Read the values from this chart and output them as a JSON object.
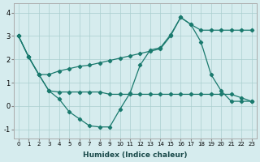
{
  "xlabel": "Humidex (Indice chaleur)",
  "xlim": [
    -0.5,
    23.5
  ],
  "ylim": [
    -1.4,
    4.4
  ],
  "xticks": [
    0,
    1,
    2,
    3,
    4,
    5,
    6,
    7,
    8,
    9,
    10,
    11,
    12,
    13,
    14,
    15,
    16,
    17,
    18,
    19,
    20,
    21,
    22,
    23
  ],
  "yticks": [
    -1,
    0,
    1,
    2,
    3,
    4
  ],
  "bg_color": "#d6ecee",
  "line_color": "#1a7a6e",
  "grid_color": "#aacfcf",
  "line1_x": [
    0,
    1,
    2,
    3,
    4,
    5,
    6,
    7,
    8,
    9,
    10,
    11,
    12,
    13,
    14,
    15,
    16,
    17,
    18,
    19,
    20,
    21,
    22,
    23
  ],
  "line1_y": [
    3.0,
    2.1,
    1.35,
    1.35,
    1.5,
    1.6,
    1.7,
    1.75,
    1.85,
    1.95,
    2.05,
    2.15,
    2.25,
    2.35,
    2.45,
    3.0,
    3.8,
    3.5,
    3.25,
    3.25,
    3.25,
    3.25,
    3.25,
    3.25
  ],
  "line2_x": [
    0,
    1,
    2,
    3,
    4,
    5,
    6,
    7,
    8,
    9,
    10,
    11,
    12,
    13,
    14,
    15,
    16,
    17,
    18,
    19,
    20,
    21,
    22,
    23
  ],
  "line2_y": [
    3.0,
    2.1,
    1.35,
    0.65,
    0.3,
    -0.25,
    -0.55,
    -0.85,
    -0.9,
    -0.9,
    -0.15,
    0.55,
    1.75,
    2.4,
    2.5,
    3.05,
    3.8,
    3.5,
    2.75,
    1.35,
    0.65,
    0.2,
    0.2,
    0.2
  ],
  "line3_x": [
    0,
    1,
    2,
    3,
    4,
    5,
    6,
    7,
    8,
    9,
    10,
    11,
    12,
    13,
    14,
    15,
    16,
    17,
    18,
    19,
    20,
    21,
    22,
    23
  ],
  "line3_y": [
    3.0,
    2.1,
    1.35,
    0.65,
    0.6,
    0.6,
    0.6,
    0.6,
    0.6,
    0.5,
    0.5,
    0.5,
    0.5,
    0.5,
    0.5,
    0.5,
    0.5,
    0.5,
    0.5,
    0.5,
    0.5,
    0.5,
    0.35,
    0.2
  ]
}
